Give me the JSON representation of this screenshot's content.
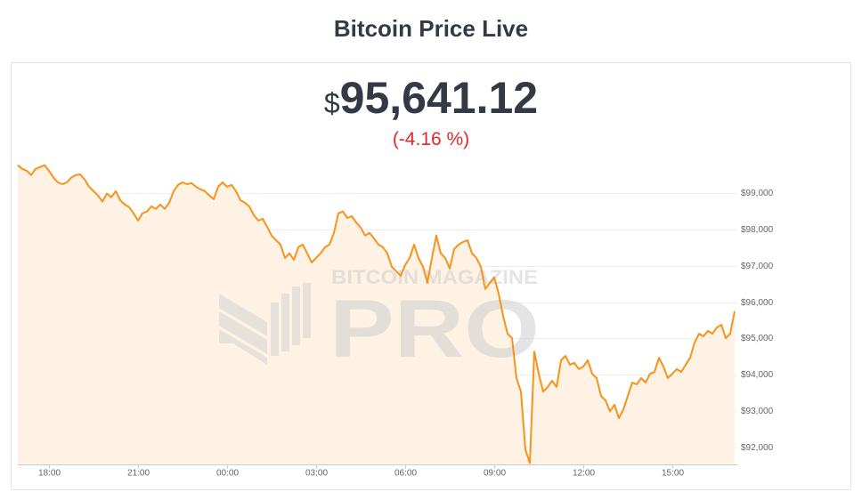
{
  "header": {
    "title": "Bitcoin Price Live"
  },
  "price": {
    "currency": "$",
    "amount": "95,641.12",
    "change": "(-4.16 %)"
  },
  "watermark": {
    "brand": "BITCOIN MAGAZINE",
    "product": "PRO"
  },
  "chart_data": {
    "type": "line",
    "color": "#f7931a",
    "fill_color": "#fdf2e4",
    "grid": true,
    "x": [
      -1.05,
      -0.9,
      -0.75,
      -0.6,
      -0.45,
      -0.3,
      -0.15,
      0,
      0.15,
      0.3,
      0.45,
      0.6,
      0.75,
      0.9,
      1.05,
      1.2,
      1.35,
      1.5,
      1.65,
      1.8,
      1.95,
      2.1,
      2.25,
      2.4,
      2.55,
      2.7,
      2.85,
      3,
      3.15,
      3.3,
      3.45,
      3.6,
      3.75,
      3.9,
      4.05,
      4.2,
      4.35,
      4.5,
      4.65,
      4.8,
      4.95,
      5.1,
      5.25,
      5.4,
      5.55,
      5.7,
      5.85,
      6,
      6.15,
      6.3,
      6.45,
      6.6,
      6.75,
      6.9,
      7.05,
      7.2,
      7.35,
      7.5,
      7.65,
      7.8,
      7.95,
      8.1,
      8.25,
      8.4,
      8.55,
      8.7,
      8.85,
      9,
      9.15,
      9.3,
      9.45,
      9.6,
      9.75,
      9.9,
      10.05,
      10.2,
      10.35,
      10.5,
      10.65,
      10.8,
      10.95,
      11.1,
      11.25,
      11.4,
      11.55,
      11.7,
      11.85,
      12,
      12.15,
      12.3,
      12.45,
      12.6,
      12.75,
      12.9,
      13.05,
      13.2,
      13.35,
      13.5,
      13.65,
      13.8,
      13.95,
      14.1,
      14.25,
      14.4,
      14.55,
      14.7,
      14.85,
      15,
      15.15,
      15.3,
      15.45,
      15.6,
      15.75,
      15.9,
      16.05,
      16.2,
      16.35,
      16.5,
      16.65,
      16.8,
      16.95,
      17.1,
      17.25,
      17.4,
      17.55,
      17.7,
      17.85,
      18,
      18.15,
      18.3,
      18.45,
      18.6,
      18.75,
      18.9,
      19.05,
      19.2,
      19.35,
      19.5,
      19.65,
      19.8,
      19.95,
      20.1,
      20.25,
      20.4,
      20.55,
      20.7,
      20.85,
      21,
      21.15,
      21.3,
      21.45,
      21.6,
      21.75,
      21.9,
      22.05,
      22.2,
      22.35,
      22.5,
      22.65,
      22.8,
      22.95,
      23.1
    ],
    "values": [
      99760,
      99660,
      99610,
      99490,
      99660,
      99710,
      99760,
      99610,
      99420,
      99290,
      99240,
      99290,
      99420,
      99490,
      99510,
      99370,
      99170,
      99050,
      98930,
      98760,
      98980,
      98880,
      99050,
      98800,
      98680,
      98610,
      98440,
      98240,
      98440,
      98490,
      98630,
      98560,
      98680,
      98560,
      98730,
      99050,
      99220,
      99290,
      99240,
      99270,
      99170,
      99100,
      99050,
      98930,
      98830,
      99170,
      99290,
      99170,
      99220,
      99050,
      98800,
      98730,
      98630,
      98390,
      98240,
      98290,
      98070,
      97830,
      97700,
      97580,
      97210,
      97340,
      97160,
      97510,
      97580,
      97340,
      97090,
      97210,
      97340,
      97510,
      97580,
      97900,
      98440,
      98490,
      98310,
      98360,
      98190,
      98050,
      97830,
      97900,
      97750,
      97580,
      97510,
      97340,
      96970,
      96850,
      96720,
      97020,
      97210,
      97580,
      97210,
      96970,
      96530,
      97210,
      97830,
      97340,
      97210,
      96920,
      97460,
      97580,
      97650,
      97700,
      97340,
      97210,
      96970,
      96360,
      96530,
      96680,
      96230,
      95620,
      95130,
      95010,
      93910,
      93540,
      91950,
      91580,
      94640,
      94030,
      93540,
      93670,
      93840,
      93670,
      94400,
      94520,
      94280,
      94330,
      94160,
      94230,
      94400,
      94030,
      93910,
      93420,
      93300,
      93000,
      93180,
      92810,
      93050,
      93420,
      93790,
      93740,
      93910,
      93790,
      94030,
      94080,
      94470,
      94230,
      93910,
      94030,
      94160,
      94080,
      94280,
      94470,
      94890,
      95130,
      95060,
      95210,
      95130,
      95300,
      95380,
      95010,
      95130,
      95750
    ],
    "xlim": [
      -1.05,
      23.19
    ],
    "ylim": [
      91540,
      99900
    ],
    "xticks": [
      {
        "value": 0,
        "label": "18:00"
      },
      {
        "value": 3,
        "label": "21:00"
      },
      {
        "value": 6,
        "label": "00:00"
      },
      {
        "value": 9,
        "label": "03:00"
      },
      {
        "value": 12,
        "label": "06:00"
      },
      {
        "value": 15,
        "label": "09:00"
      },
      {
        "value": 18,
        "label": "12:00"
      },
      {
        "value": 21,
        "label": "15:00"
      }
    ],
    "yticks": [
      {
        "value": 92000,
        "label": "$92,000"
      },
      {
        "value": 93000,
        "label": "$93,000"
      },
      {
        "value": 94000,
        "label": "$94,000"
      },
      {
        "value": 95000,
        "label": "$95,000"
      },
      {
        "value": 96000,
        "label": "$96,000"
      },
      {
        "value": 97000,
        "label": "$97,000"
      },
      {
        "value": 98000,
        "label": "$98,000"
      },
      {
        "value": 99000,
        "label": "$99,000"
      }
    ]
  }
}
